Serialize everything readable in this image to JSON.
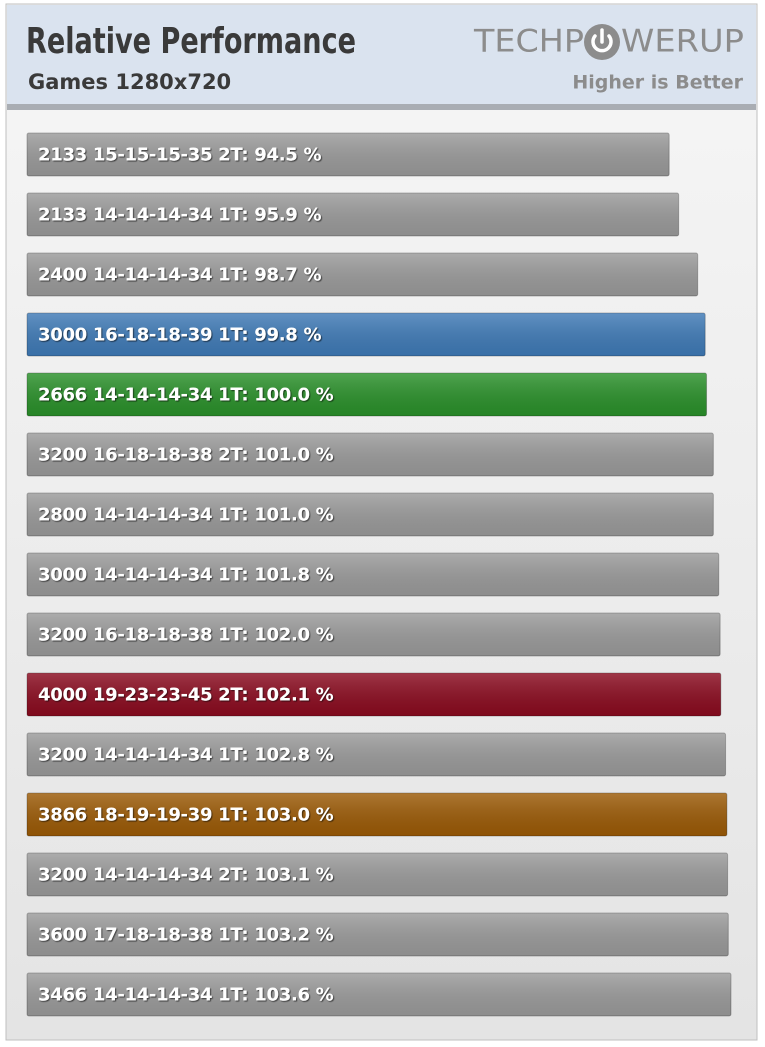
{
  "chart_data": {
    "type": "bar",
    "orientation": "horizontal",
    "title": "Relative Performance",
    "subtitle": "Games 1280x720",
    "logo": {
      "before": "TECHP",
      "after": "WERUP"
    },
    "note": "Higher is Better",
    "categories": [
      "2133 15-15-15-35 2T:",
      "2133 14-14-14-34 1T:",
      "2400 14-14-14-34 1T:",
      "3000 16-18-18-39 1T:",
      "2666 14-14-14-34 1T:",
      "3200 16-18-18-38 2T:",
      "2800 14-14-14-34 1T:",
      "3000 14-14-14-34 1T:",
      "3200 16-18-18-38 1T:",
      "4000 19-23-23-45 2T:",
      "3200 14-14-14-34 1T:",
      "3866 18-19-19-39 1T:",
      "3200 14-14-14-34 2T:",
      "3600 17-18-18-38 1T:",
      "3466 14-14-14-34 1T:"
    ],
    "values": [
      94.5,
      95.9,
      98.7,
      99.8,
      100.0,
      101.0,
      101.0,
      101.8,
      102.0,
      102.1,
      102.8,
      103.0,
      103.1,
      103.2,
      103.6
    ],
    "value_labels": [
      "94.5 %",
      "95.9 %",
      "98.7 %",
      "99.8 %",
      "100.0 %",
      "101.0 %",
      "101.0 %",
      "101.8 %",
      "102.0 %",
      "102.1 %",
      "102.8 %",
      "103.0 %",
      "103.1 %",
      "103.2 %",
      "103.6 %"
    ],
    "colors": [
      "#9a9a9a",
      "#9a9a9a",
      "#9a9a9a",
      "#3f7ab6",
      "#2a902a",
      "#9a9a9a",
      "#9a9a9a",
      "#9a9a9a",
      "#9a9a9a",
      "#8a0b1f",
      "#9a9a9a",
      "#9b5a06",
      "#9a9a9a",
      "#9a9a9a",
      "#9a9a9a"
    ]
  }
}
